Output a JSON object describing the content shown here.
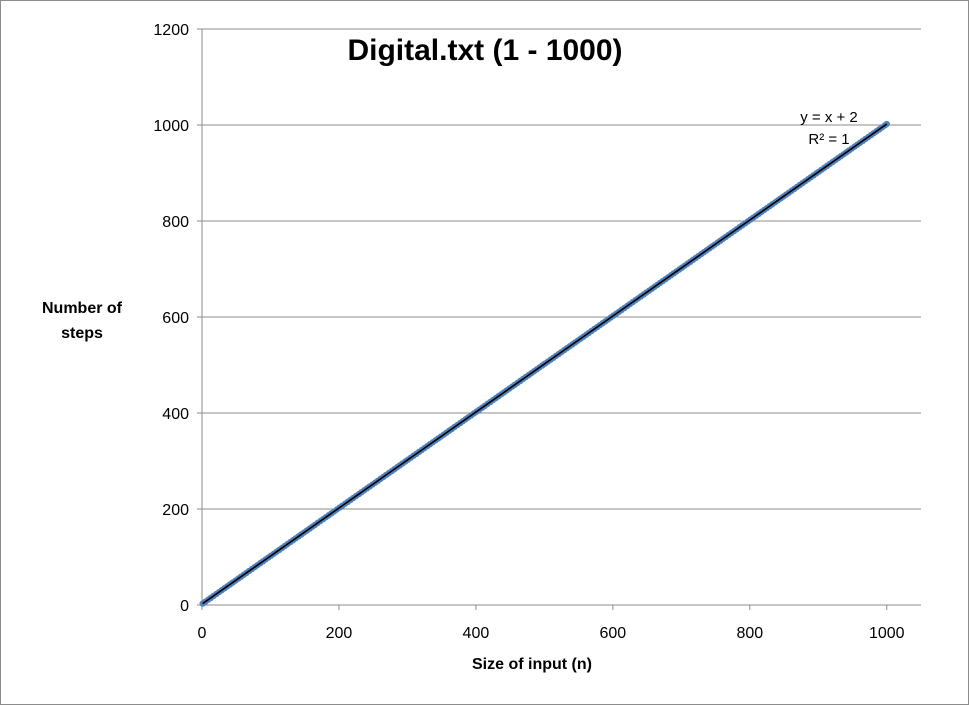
{
  "chart_data": {
    "type": "scatter",
    "title": "Digital.txt (1 - 1000)",
    "xlabel": "Size of input (n)",
    "ylabel_lines": [
      "Number of",
      "steps"
    ],
    "xlim": [
      0,
      1050
    ],
    "ylim": [
      0,
      1200
    ],
    "x_ticks": [
      0,
      200,
      400,
      600,
      800,
      1000
    ],
    "y_ticks": [
      0,
      200,
      400,
      600,
      800,
      1000,
      1200
    ],
    "grid": "horizontal",
    "legend": "none",
    "series": [
      {
        "x_start": 1,
        "x_end": 1000,
        "relation": "y = x + 2",
        "color": "#4f81bd"
      }
    ],
    "trendline": {
      "equation": "y = x + 2",
      "r_squared": "R² = 1",
      "slope": 1,
      "intercept": 2,
      "color": "#000000"
    }
  }
}
